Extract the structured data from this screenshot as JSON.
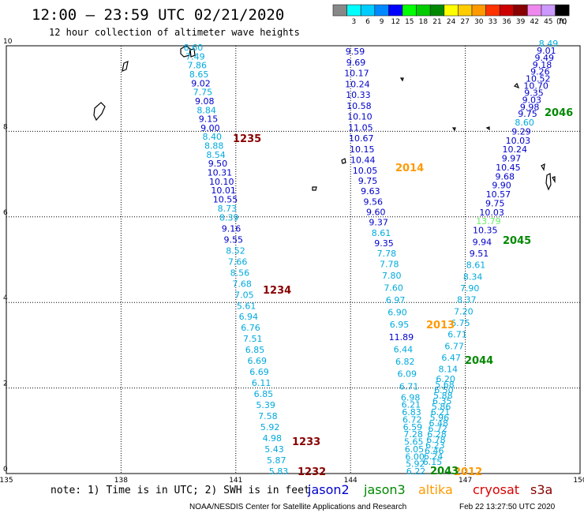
{
  "header": {
    "title": "12:00 – 23:59 UTC 02/21/2020",
    "subtitle": "12 hour collection of altimeter wave heights"
  },
  "legend": {
    "unit": "(ft)",
    "bins": [
      {
        "label": "",
        "color": "#888888"
      },
      {
        "label": "3",
        "color": "#00ffff"
      },
      {
        "label": "6",
        "color": "#00ccff"
      },
      {
        "label": "9",
        "color": "#0088ff"
      },
      {
        "label": "12",
        "color": "#0000ff"
      },
      {
        "label": "15",
        "color": "#00ff00"
      },
      {
        "label": "18",
        "color": "#00cc00"
      },
      {
        "label": "21",
        "color": "#008800"
      },
      {
        "label": "24",
        "color": "#ffff00"
      },
      {
        "label": "27",
        "color": "#ffcc00"
      },
      {
        "label": "30",
        "color": "#ff9900"
      },
      {
        "label": "33",
        "color": "#ff3300"
      },
      {
        "label": "36",
        "color": "#cc0000"
      },
      {
        "label": "39",
        "color": "#880000"
      },
      {
        "label": "42",
        "color": "#ee88ee"
      },
      {
        "label": "45",
        "color": "#cc99ff"
      },
      {
        "label": "70",
        "color": "#000000"
      }
    ]
  },
  "axes": {
    "lon_ticks": [
      "135",
      "138",
      "141",
      "144",
      "147",
      "150"
    ],
    "lat_ticks": [
      "0",
      "2",
      "4",
      "6",
      "8",
      "10"
    ]
  },
  "satellites": [
    {
      "label": "jason2",
      "color": "#0000cc"
    },
    {
      "label": "jason3",
      "color": "#008800"
    },
    {
      "label": "altika",
      "color": "#ff9900"
    },
    {
      "label": "cryosat",
      "color": "#dd0000"
    },
    {
      "label": "s3a",
      "color": "#880000"
    }
  ],
  "footer": {
    "note": "note: 1) Time is in UTC; 2) SWH is in feet",
    "credit": "NOAA/NESDIS Center for Satellite Applications and Research",
    "generated": "Feb 22 13:27:50 UTC 2020"
  },
  "colors": {
    "light": "#00aadd",
    "dark": "#0000cc",
    "revs3a": "#880000",
    "revjason3": "#008800",
    "revaltika": "#ff9900"
  },
  "tracks": {
    "track1": [
      "8.60",
      "7.49",
      "7.86",
      "8.65",
      "9.02",
      "7.75",
      "9.08",
      "8.84",
      "9.15",
      "9.00",
      "8.40",
      "8.88",
      "8.54",
      "9.50",
      "10.31",
      "10.10",
      "10.01",
      "10.55",
      "8.73",
      "8.39",
      "9.16",
      "9.55",
      "8.52",
      "7.66",
      "8.56",
      "7.68",
      "7.05",
      "5.61",
      "6.94",
      "6.76",
      "7.51",
      "6.85",
      "6.69",
      "6.69",
      "6.11",
      "6.85",
      "5.39",
      "7.58",
      "5.92",
      "4.98",
      "5.43",
      "5.87",
      "5.83"
    ],
    "track2": [
      "9.59",
      "9.69",
      "10.17",
      "10.24",
      "10.33",
      "10.58",
      "10.10",
      "11.05",
      "10.67",
      "10.15",
      "10.44",
      "10.05",
      "9.75",
      "9.63",
      "9.56",
      "9.60",
      "9.37",
      "8.61",
      "9.35",
      "7.78",
      "7.78",
      "7.80",
      "7.60",
      "6.97",
      "6.90",
      "6.95",
      "11.89",
      "6.44",
      "6.82",
      "6.09",
      "6.71",
      "6.98",
      "6.21",
      "6.83",
      "6.72",
      "6.59",
      "7.28",
      "5.65",
      "6.05",
      "6.00",
      "5.92",
      "6.22"
    ],
    "track3": [
      "8.49",
      "9.01",
      "9.49",
      "9.18",
      "9.26",
      "10.52",
      "10.70",
      "9.35",
      "9.03",
      "9.98",
      "9.75",
      "8.60",
      "9.29",
      "10.03",
      "10.24",
      "9.97",
      "10.45",
      "9.68",
      "9.90",
      "10.57",
      "9.75",
      "10.03",
      "13.79",
      "10.35",
      "9.94",
      "9.51",
      "8.61",
      "8.34",
      "7.90",
      "8.37",
      "7.20",
      "6.75",
      "6.71",
      "6.77",
      "6.47",
      "8.14",
      "6.20",
      "5.68",
      "6.50",
      "5.88",
      "6.35",
      "5.86",
      "6.21",
      "5.96",
      "6.48",
      "6.72",
      "6.28",
      "6.78",
      "6.23",
      "6.46",
      "6.24",
      "6.15"
    ]
  },
  "revs": [
    {
      "label": "1235",
      "sat": "s3a"
    },
    {
      "label": "1234",
      "sat": "s3a"
    },
    {
      "label": "1233",
      "sat": "s3a"
    },
    {
      "label": "1232",
      "sat": "s3a"
    },
    {
      "label": "2014",
      "sat": "altika"
    },
    {
      "label": "2013",
      "sat": "altika"
    },
    {
      "label": "2012",
      "sat": "altika"
    },
    {
      "label": "2046",
      "sat": "jason3"
    },
    {
      "label": "2045",
      "sat": "jason3"
    },
    {
      "label": "2044",
      "sat": "jason3"
    },
    {
      "label": "2043",
      "sat": "jason3"
    }
  ]
}
